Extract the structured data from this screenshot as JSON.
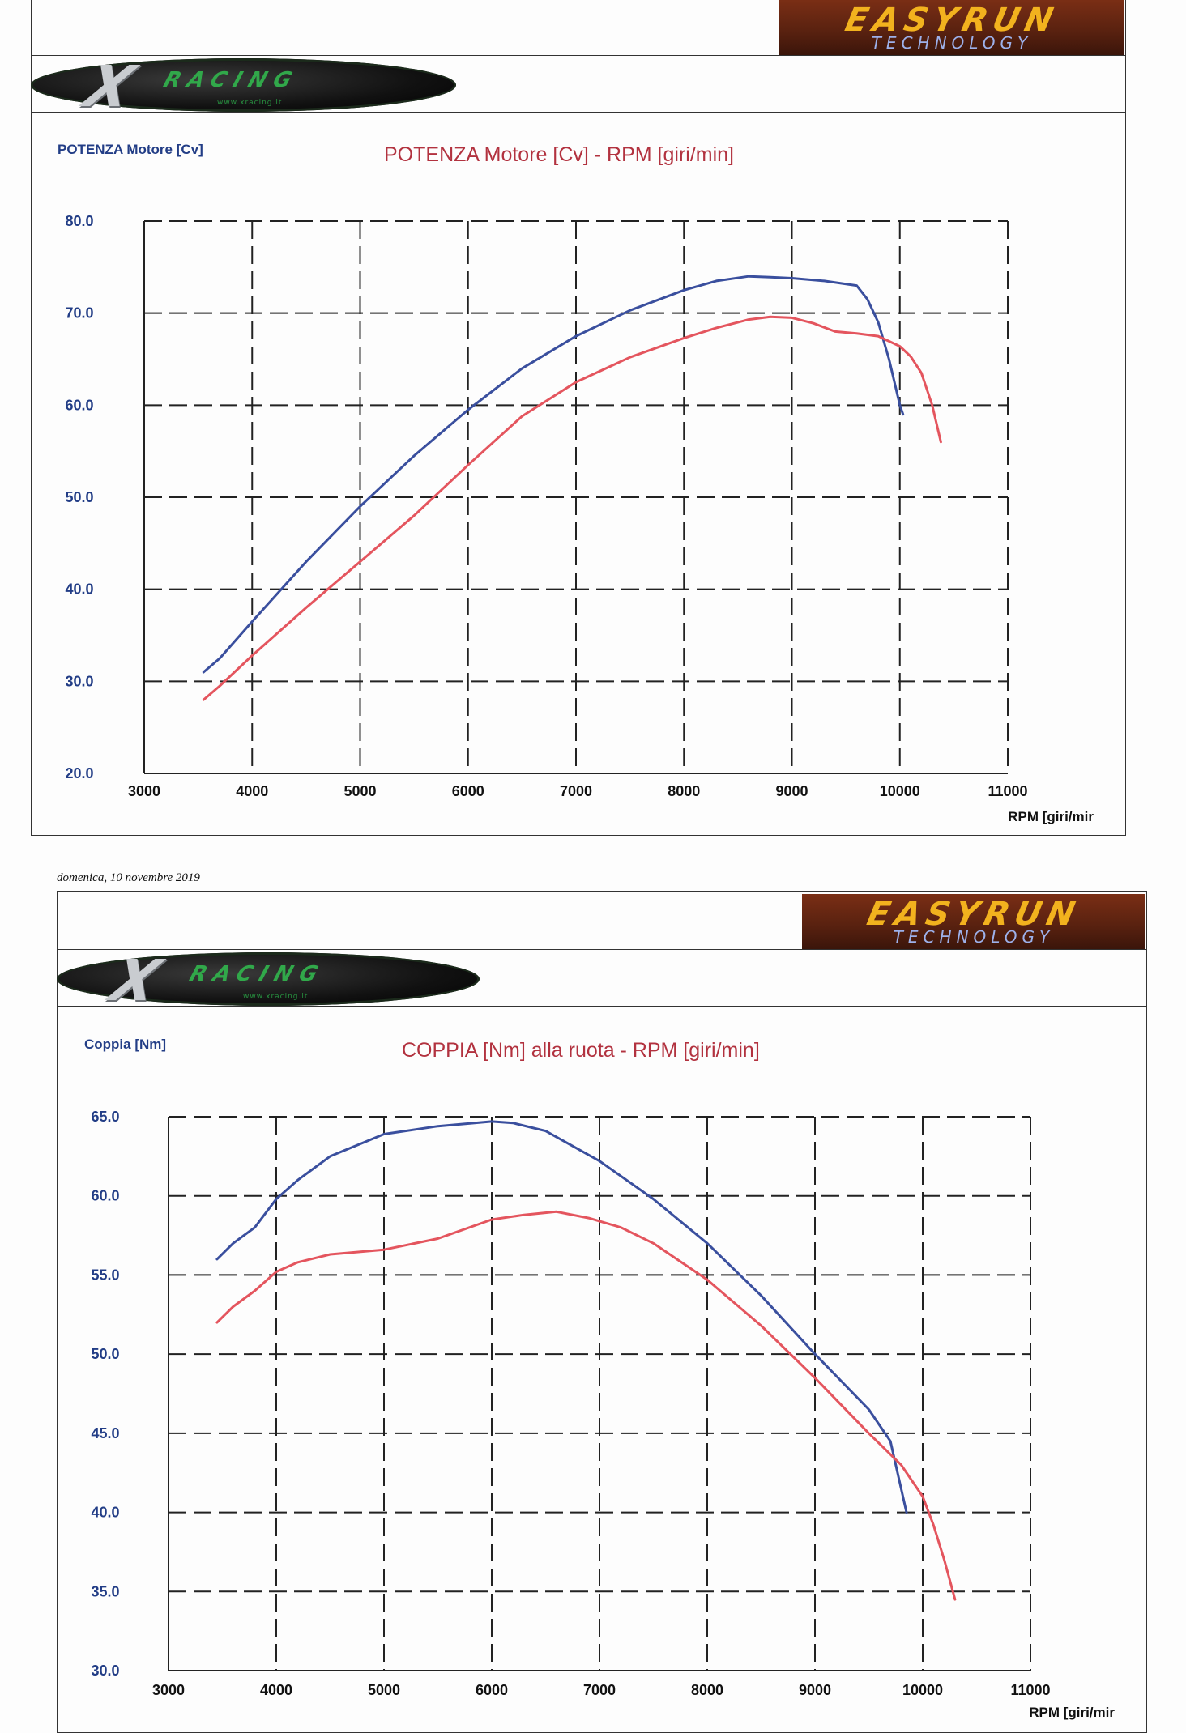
{
  "header": {
    "easyrun_brand": "EASYRUN",
    "easyrun_tagline": "TECHNOLOGY",
    "xracing_brand": "RACING",
    "xracing_url": "www.xracing.it"
  },
  "date_label": "domenica, 10 novembre 2019",
  "chart_data": [
    {
      "type": "line",
      "title": "POTENZA Motore [Cv] - RPM [giri/min]",
      "ylabel": "POTENZA Motore [Cv]",
      "xlabel": "RPM [giri/mir",
      "xlim": [
        3000,
        11000
      ],
      "ylim": [
        20,
        80
      ],
      "x_ticks": [
        "3000",
        "4000",
        "5000",
        "6000",
        "7000",
        "8000",
        "9000",
        "10000",
        "11000"
      ],
      "y_ticks": [
        "80.0",
        "70.0",
        "60.0",
        "50.0",
        "40.0",
        "30.0",
        "20.0"
      ],
      "grid": true,
      "series": [
        {
          "color": "#3a4f9e",
          "x": [
            3550,
            3700,
            4000,
            4500,
            5000,
            5500,
            6000,
            6500,
            7000,
            7500,
            8000,
            8300,
            8600,
            8800,
            9000,
            9300,
            9600,
            9700,
            9800,
            9900,
            10000,
            10030
          ],
          "values": [
            31.0,
            32.5,
            36.5,
            43.0,
            49.0,
            54.5,
            59.5,
            64.0,
            67.5,
            70.3,
            72.5,
            73.5,
            74.0,
            73.9,
            73.8,
            73.5,
            73.0,
            71.5,
            69.0,
            65.0,
            60.0,
            59.0
          ]
        },
        {
          "color": "#e4555e",
          "x": [
            3550,
            3700,
            4000,
            4500,
            5000,
            5500,
            6000,
            6500,
            7000,
            7500,
            8000,
            8300,
            8600,
            8800,
            9000,
            9200,
            9400,
            9600,
            9800,
            10000,
            10100,
            10200,
            10300,
            10380
          ],
          "values": [
            28.0,
            29.5,
            32.8,
            38.0,
            43.0,
            48.0,
            53.5,
            58.8,
            62.5,
            65.2,
            67.3,
            68.4,
            69.3,
            69.6,
            69.5,
            68.9,
            68.0,
            67.8,
            67.5,
            66.4,
            65.3,
            63.5,
            60.0,
            56.0
          ]
        }
      ]
    },
    {
      "type": "line",
      "title": "COPPIA [Nm] alla ruota - RPM [giri/min]",
      "ylabel": "Coppia [Nm]",
      "xlabel": "RPM [giri/mir",
      "xlim": [
        3000,
        11000
      ],
      "ylim": [
        30,
        65
      ],
      "x_ticks": [
        "3000",
        "4000",
        "5000",
        "6000",
        "7000",
        "8000",
        "9000",
        "10000",
        "11000"
      ],
      "y_ticks": [
        "65.0",
        "60.0",
        "55.0",
        "50.0",
        "45.0",
        "40.0",
        "35.0",
        "30.0"
      ],
      "grid": true,
      "series": [
        {
          "color": "#3a4f9e",
          "x": [
            3450,
            3600,
            3800,
            4000,
            4200,
            4500,
            5000,
            5500,
            6000,
            6200,
            6500,
            7000,
            7500,
            8000,
            8500,
            9000,
            9500,
            9700,
            9800,
            9850
          ],
          "values": [
            56.0,
            57.0,
            58.0,
            59.8,
            61.0,
            62.5,
            63.9,
            64.4,
            64.7,
            64.6,
            64.1,
            62.2,
            59.8,
            57.0,
            53.7,
            50.0,
            46.5,
            44.5,
            41.5,
            40.0
          ]
        },
        {
          "color": "#e4555e",
          "x": [
            3450,
            3600,
            3800,
            4000,
            4200,
            4500,
            5000,
            5500,
            6000,
            6300,
            6600,
            6900,
            7200,
            7500,
            8000,
            8500,
            9000,
            9500,
            9800,
            10000,
            10100,
            10200,
            10300
          ],
          "values": [
            52.0,
            53.0,
            54.0,
            55.2,
            55.8,
            56.3,
            56.6,
            57.3,
            58.5,
            58.8,
            59.0,
            58.6,
            58.0,
            57.0,
            54.7,
            51.8,
            48.5,
            45.0,
            43.0,
            41.0,
            39.2,
            37.0,
            34.5
          ]
        }
      ]
    }
  ]
}
